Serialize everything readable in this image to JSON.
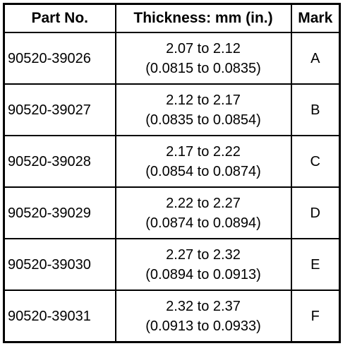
{
  "table": {
    "header": [
      "Part No.",
      "Thickness: mm (in.)",
      "Mark"
    ],
    "rows": [
      [
        "90520-39026",
        "2.07 to 2.12",
        "(0.0815 to 0.0835)",
        "A"
      ],
      [
        "90520-39027",
        "2.12 to 2.17",
        "(0.0835 to 0.0854)",
        "B"
      ],
      [
        "90520-39028",
        "2.17 to 2.22",
        "(0.0854 to 0.0874)",
        "C"
      ],
      [
        "90520-39029",
        "2.22 to 2.27",
        "(0.0874 to 0.0894)",
        "D"
      ],
      [
        "90520-39030",
        "2.27 to 2.32",
        "(0.0894 to 0.0913)",
        "E"
      ],
      [
        "90520-39031",
        "2.32 to 2.37",
        "(0.0913 to 0.0933)",
        "F"
      ]
    ]
  }
}
